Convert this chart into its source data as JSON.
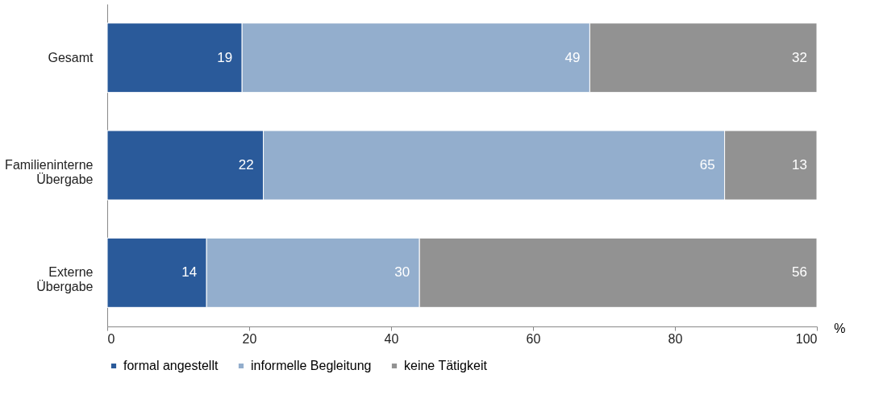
{
  "chart_data": {
    "type": "bar",
    "orientation": "horizontal",
    "stacked": true,
    "categories": [
      "Gesamt",
      "Familieninterne\nÜbergabe",
      "Externe\nÜbergabe"
    ],
    "series": [
      {
        "name": "formal angestellt",
        "color": "#2a5a9a",
        "values": [
          19,
          22,
          14
        ]
      },
      {
        "name": "informelle Begleitung",
        "color": "#93aecd",
        "values": [
          49,
          65,
          30
        ]
      },
      {
        "name": "keine Tätigkeit",
        "color": "#929292",
        "values": [
          32,
          13,
          56
        ]
      }
    ],
    "xlim": [
      0,
      100
    ],
    "xticks": [
      0,
      20,
      40,
      60,
      80,
      100
    ],
    "xlabel": "%",
    "data_labels": true,
    "legend": "bottom",
    "grid": false
  }
}
